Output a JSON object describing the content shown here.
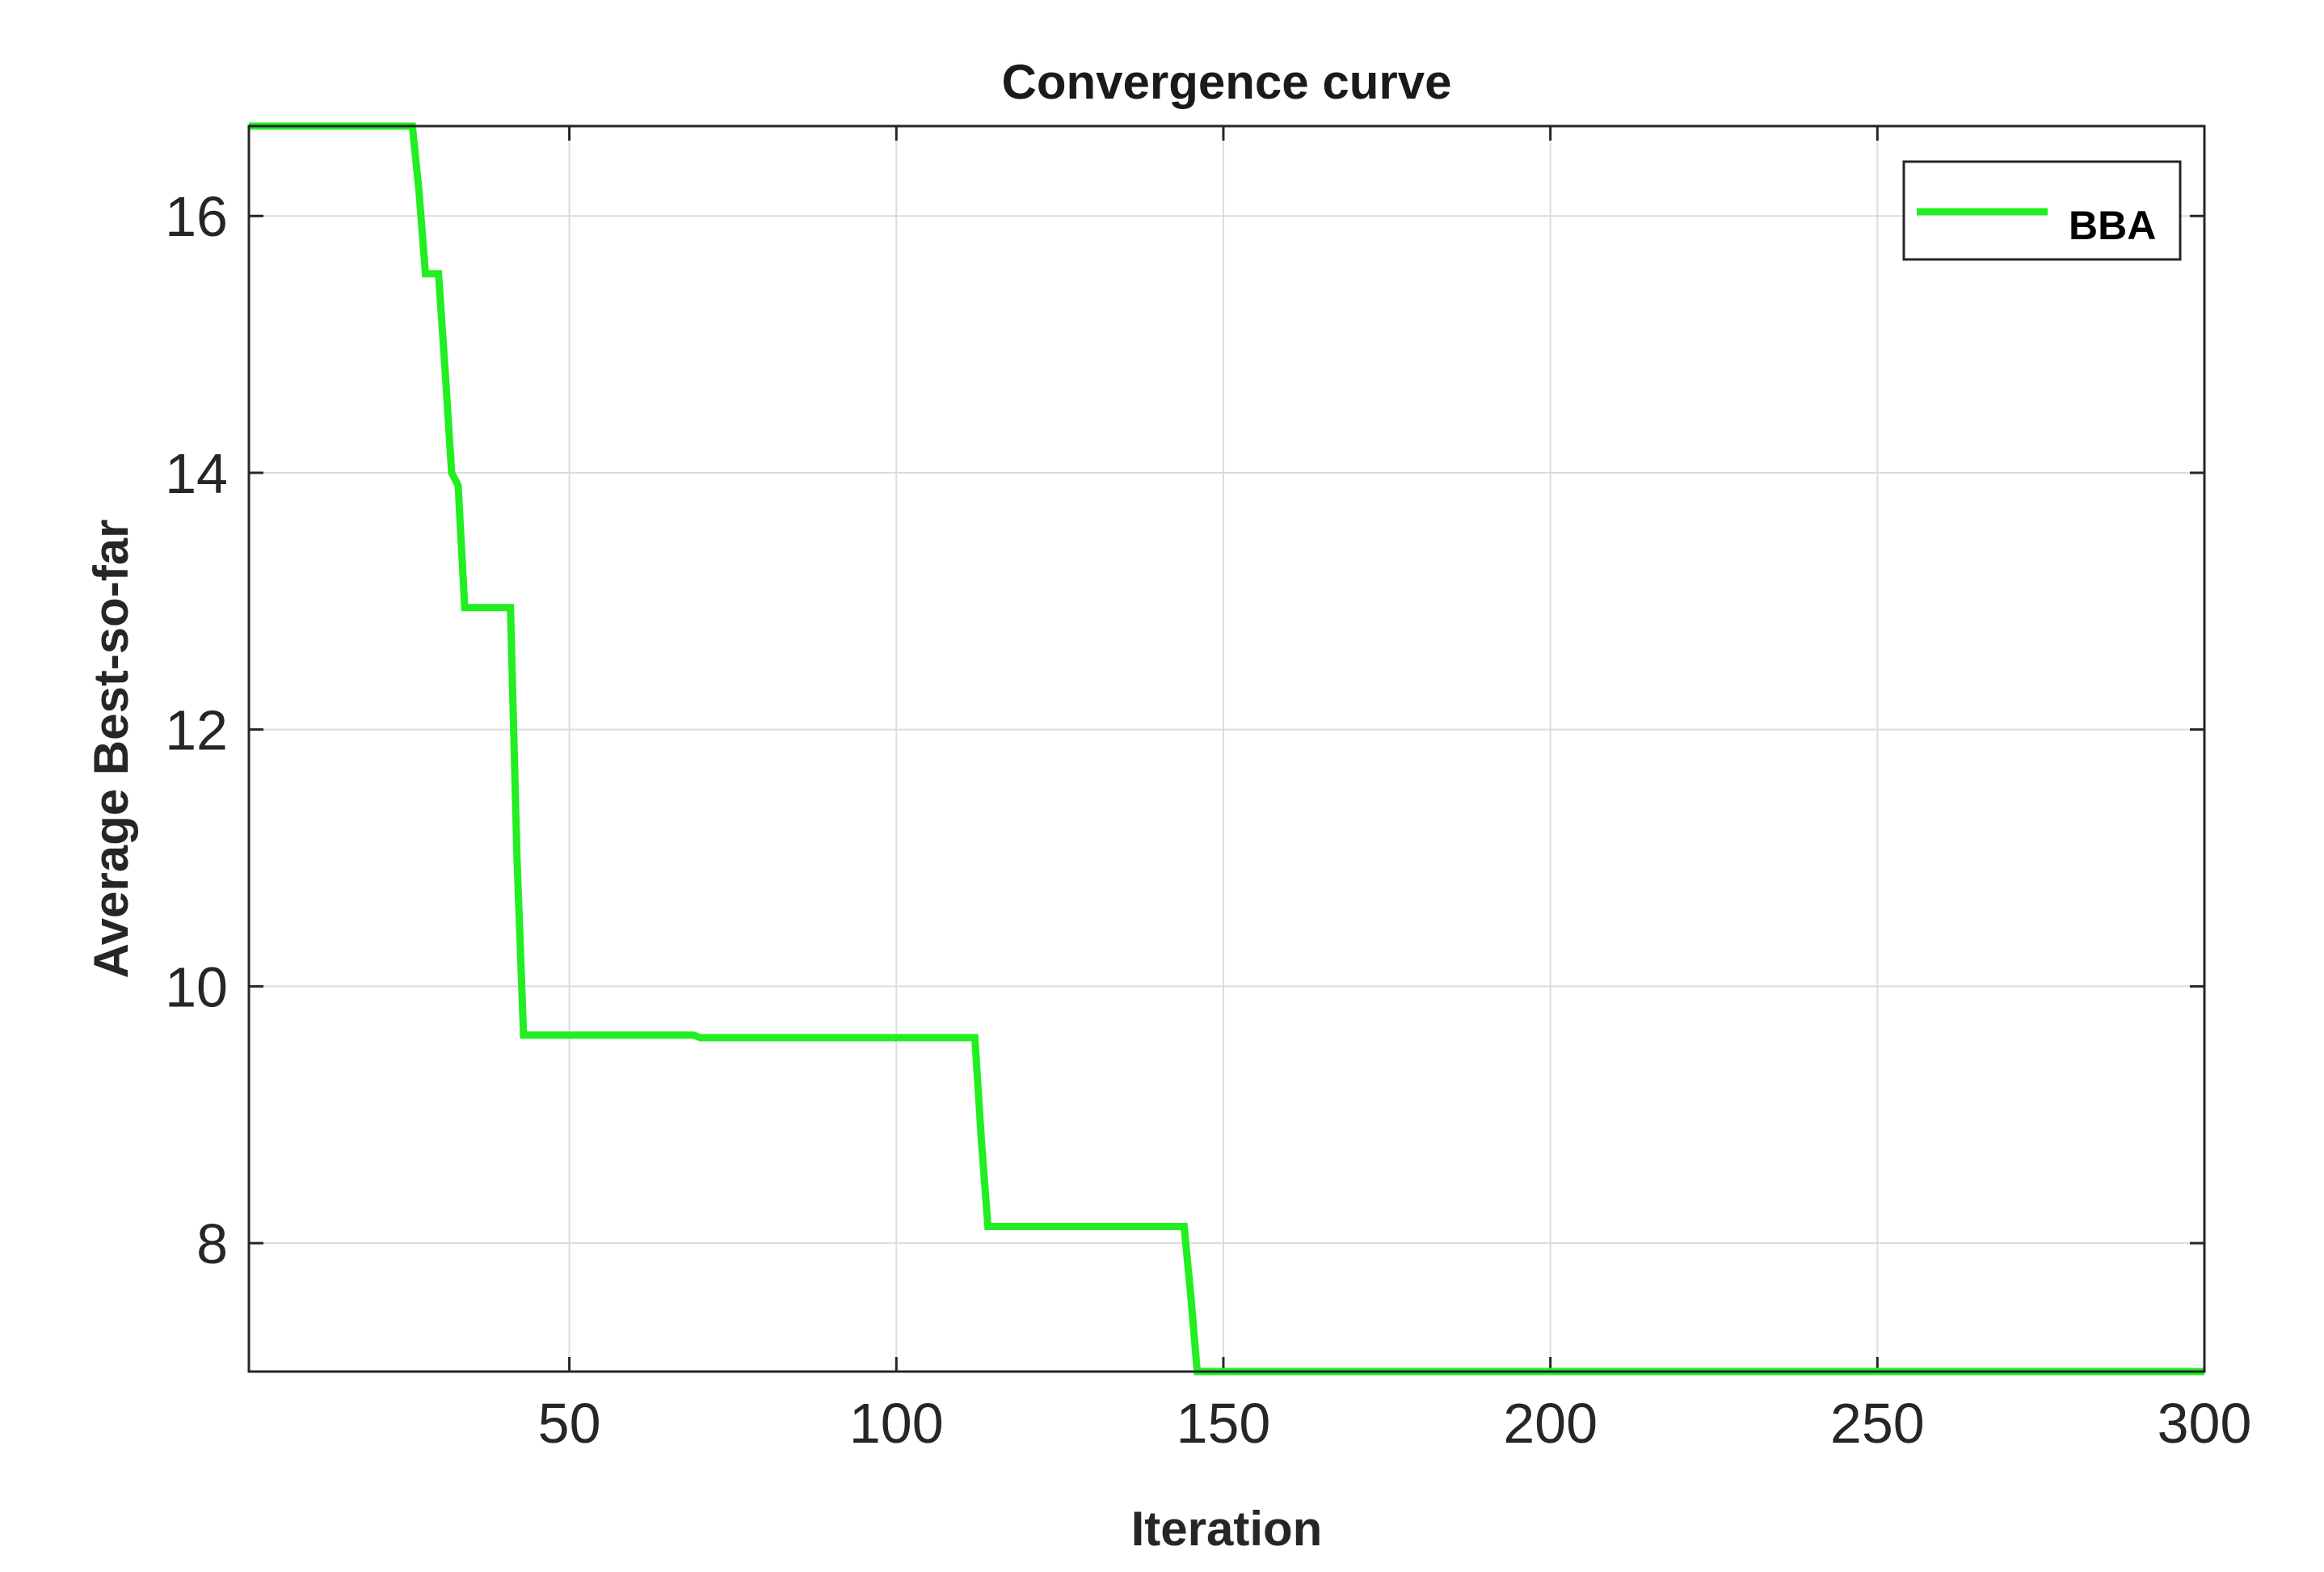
{
  "chart_data": {
    "type": "line",
    "title": "Convergence curve",
    "xlabel": "Iteration",
    "ylabel": "Average Best-so-far",
    "xlim": [
      1,
      300
    ],
    "ylim": [
      7,
      16.7
    ],
    "xticks": [
      50,
      100,
      150,
      200,
      250,
      300
    ],
    "yticks": [
      8,
      10,
      12,
      14,
      16
    ],
    "grid": true,
    "legend_position": "top-right",
    "series": [
      {
        "name": "BBA",
        "color": "#22ee22",
        "x": [
          1,
          26,
          27,
          28,
          29,
          30,
          31,
          32,
          33,
          34,
          41,
          42,
          43,
          69,
          70,
          112,
          113,
          114,
          144,
          145,
          146,
          300
        ],
        "y": [
          16.7,
          16.7,
          16.2,
          15.55,
          15.55,
          15.55,
          14.8,
          14.0,
          13.9,
          12.95,
          12.95,
          11.0,
          9.62,
          9.62,
          9.6,
          9.6,
          8.8,
          8.13,
          8.13,
          7.6,
          7.0,
          7.0
        ]
      }
    ]
  }
}
